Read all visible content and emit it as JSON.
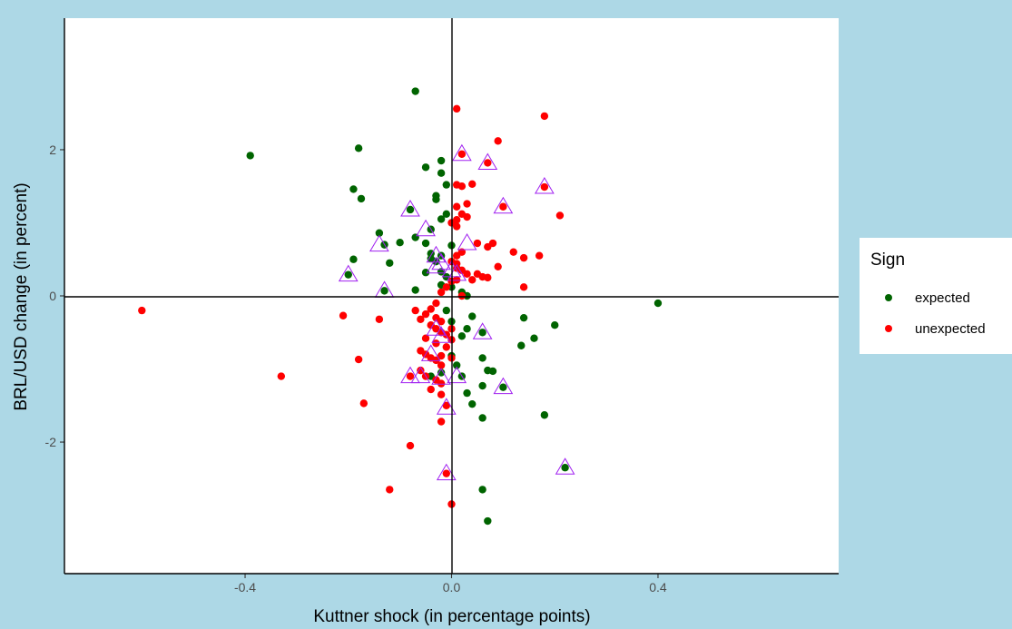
{
  "chart_data": {
    "type": "scatter",
    "xlabel": "Kuttner shock (in percentage points)",
    "ylabel": "BRL/USD change (in percent)",
    "xlim": [
      -0.75,
      0.75
    ],
    "ylim": [
      -3.8,
      3.8
    ],
    "x_ticks": [
      -0.4,
      0.0,
      0.4
    ],
    "x_tick_labels": [
      "-0.4",
      "0.0",
      "0.4"
    ],
    "y_ticks": [
      -2,
      0,
      2
    ],
    "y_tick_labels": [
      "-2",
      "0",
      "2"
    ],
    "grid": false,
    "reference_lines": {
      "x": 0,
      "y": 0
    },
    "legend": {
      "title": "Sign",
      "position": "right",
      "entries": [
        {
          "label": "expected",
          "color": "#006400"
        },
        {
          "label": "unexpected",
          "color": "#FF0000"
        }
      ]
    },
    "highlight_marker": {
      "shape": "open-triangle",
      "color": "#A020F0"
    },
    "series": [
      {
        "name": "expected",
        "color": "#006400",
        "points": [
          [
            -0.39,
            1.92
          ],
          [
            -0.07,
            2.8
          ],
          [
            -0.18,
            2.02
          ],
          [
            -0.19,
            1.46
          ],
          [
            -0.175,
            1.33
          ],
          [
            -0.05,
            1.76
          ],
          [
            -0.02,
            1.85
          ],
          [
            -0.02,
            1.68
          ],
          [
            -0.01,
            1.52
          ],
          [
            -0.03,
            1.37
          ],
          [
            -0.03,
            1.32
          ],
          [
            -0.08,
            1.18
          ],
          [
            -0.02,
            1.05
          ],
          [
            -0.01,
            1.12
          ],
          [
            -0.04,
            0.91
          ],
          [
            -0.14,
            0.86
          ],
          [
            -0.13,
            0.7
          ],
          [
            -0.1,
            0.73
          ],
          [
            -0.07,
            0.8
          ],
          [
            -0.05,
            0.72
          ],
          [
            -0.04,
            0.58
          ],
          [
            -0.02,
            0.55
          ],
          [
            0.0,
            0.69
          ],
          [
            -0.19,
            0.5
          ],
          [
            -0.2,
            0.29
          ],
          [
            -0.12,
            0.45
          ],
          [
            -0.13,
            0.07
          ],
          [
            -0.07,
            0.08
          ],
          [
            -0.05,
            0.32
          ],
          [
            -0.04,
            0.51
          ],
          [
            -0.03,
            0.47
          ],
          [
            -0.02,
            0.33
          ],
          [
            -0.01,
            0.26
          ],
          [
            -0.02,
            0.15
          ],
          [
            0.0,
            0.12
          ],
          [
            0.02,
            0.05
          ],
          [
            0.03,
            0.0
          ],
          [
            0.4,
            -0.1
          ],
          [
            -0.01,
            -0.2
          ],
          [
            0.0,
            -0.35
          ],
          [
            0.02,
            -0.55
          ],
          [
            0.03,
            -0.45
          ],
          [
            0.04,
            -0.28
          ],
          [
            0.06,
            -0.5
          ],
          [
            0.14,
            -0.3
          ],
          [
            0.16,
            -0.58
          ],
          [
            0.135,
            -0.68
          ],
          [
            0.2,
            -0.4
          ],
          [
            0.06,
            -0.85
          ],
          [
            0.07,
            -1.02
          ],
          [
            0.08,
            -1.03
          ],
          [
            0.02,
            -1.1
          ],
          [
            0.06,
            -1.23
          ],
          [
            0.1,
            -1.25
          ],
          [
            0.03,
            -1.33
          ],
          [
            0.04,
            -1.48
          ],
          [
            0.01,
            -0.95
          ],
          [
            0.06,
            -1.67
          ],
          [
            0.18,
            -1.63
          ],
          [
            0.22,
            -2.35
          ],
          [
            0.06,
            -2.65
          ],
          [
            0.07,
            -3.08
          ],
          [
            -0.02,
            -1.05
          ],
          [
            -0.04,
            -1.1
          ],
          [
            0.0,
            -0.82
          ]
        ]
      },
      {
        "name": "unexpected",
        "color": "#FF0000",
        "points": [
          [
            -0.6,
            -0.2
          ],
          [
            -0.33,
            -1.1
          ],
          [
            0.01,
            2.56
          ],
          [
            0.18,
            2.46
          ],
          [
            0.09,
            2.12
          ],
          [
            0.02,
            1.94
          ],
          [
            0.07,
            1.82
          ],
          [
            0.18,
            1.49
          ],
          [
            0.02,
            1.5
          ],
          [
            0.01,
            1.52
          ],
          [
            0.04,
            1.53
          ],
          [
            0.03,
            1.26
          ],
          [
            0.1,
            1.22
          ],
          [
            0.21,
            1.1
          ],
          [
            0.01,
            1.22
          ],
          [
            0.02,
            1.12
          ],
          [
            0.03,
            1.08
          ],
          [
            0.01,
            1.04
          ],
          [
            0.0,
            1.0
          ],
          [
            0.01,
            0.95
          ],
          [
            0.05,
            0.72
          ],
          [
            0.08,
            0.72
          ],
          [
            0.07,
            0.67
          ],
          [
            0.12,
            0.6
          ],
          [
            0.14,
            0.52
          ],
          [
            0.17,
            0.55
          ],
          [
            0.02,
            0.6
          ],
          [
            0.01,
            0.55
          ],
          [
            0.0,
            0.47
          ],
          [
            0.01,
            0.44
          ],
          [
            0.01,
            0.38
          ],
          [
            0.02,
            0.35
          ],
          [
            0.03,
            0.3
          ],
          [
            0.04,
            0.22
          ],
          [
            0.05,
            0.3
          ],
          [
            0.06,
            0.26
          ],
          [
            0.07,
            0.25
          ],
          [
            0.09,
            0.4
          ],
          [
            0.14,
            0.12
          ],
          [
            0.01,
            0.22
          ],
          [
            0.0,
            0.2
          ],
          [
            -0.01,
            0.12
          ],
          [
            -0.02,
            0.05
          ],
          [
            -0.03,
            -0.1
          ],
          [
            -0.04,
            -0.18
          ],
          [
            -0.03,
            -0.3
          ],
          [
            -0.02,
            -0.35
          ],
          [
            -0.04,
            -0.4
          ],
          [
            -0.03,
            -0.45
          ],
          [
            -0.02,
            -0.5
          ],
          [
            -0.01,
            -0.53
          ],
          [
            0.0,
            -0.6
          ],
          [
            -0.03,
            -0.65
          ],
          [
            -0.05,
            -0.58
          ],
          [
            -0.06,
            -0.32
          ],
          [
            -0.07,
            -0.2
          ],
          [
            -0.05,
            -0.25
          ],
          [
            -0.06,
            -0.75
          ],
          [
            -0.05,
            -0.8
          ],
          [
            -0.04,
            -0.85
          ],
          [
            -0.03,
            -0.88
          ],
          [
            -0.02,
            -0.82
          ],
          [
            -0.01,
            -0.7
          ],
          [
            0.0,
            -0.85
          ],
          [
            -0.06,
            -1.02
          ],
          [
            -0.05,
            -1.1
          ],
          [
            -0.08,
            -1.1
          ],
          [
            -0.03,
            -1.15
          ],
          [
            -0.02,
            -1.2
          ],
          [
            -0.04,
            -1.28
          ],
          [
            -0.02,
            -1.35
          ],
          [
            -0.01,
            -1.5
          ],
          [
            -0.02,
            -1.72
          ],
          [
            -0.08,
            -2.05
          ],
          [
            -0.12,
            -2.65
          ],
          [
            -0.01,
            -2.43
          ],
          [
            0.0,
            -2.85
          ],
          [
            -0.21,
            -0.27
          ],
          [
            -0.14,
            -0.32
          ],
          [
            -0.18,
            -0.87
          ],
          [
            -0.17,
            -1.47
          ],
          [
            -0.02,
            -0.95
          ],
          [
            0.0,
            -0.45
          ],
          [
            0.02,
            0.0
          ]
        ]
      }
    ],
    "highlighted_points": [
      [
        -0.2,
        0.29
      ],
      [
        -0.14,
        0.7
      ],
      [
        -0.08,
        1.18
      ],
      [
        -0.05,
        0.91
      ],
      [
        -0.03,
        0.55
      ],
      [
        -0.02,
        0.45
      ],
      [
        0.02,
        1.94
      ],
      [
        0.07,
        1.82
      ],
      [
        0.18,
        1.49
      ],
      [
        0.1,
        1.22
      ],
      [
        0.03,
        0.72
      ],
      [
        0.0,
        0.35
      ],
      [
        0.01,
        0.3
      ],
      [
        -0.13,
        0.07
      ],
      [
        -0.03,
        0.4
      ],
      [
        -0.03,
        -0.45
      ],
      [
        -0.02,
        -0.55
      ],
      [
        0.06,
        -0.5
      ],
      [
        -0.04,
        -0.8
      ],
      [
        -0.08,
        -1.1
      ],
      [
        -0.06,
        -1.1
      ],
      [
        -0.02,
        -1.12
      ],
      [
        0.01,
        -1.1
      ],
      [
        0.1,
        -1.25
      ],
      [
        -0.01,
        -1.53
      ],
      [
        0.22,
        -2.35
      ],
      [
        -0.01,
        -2.43
      ]
    ]
  }
}
